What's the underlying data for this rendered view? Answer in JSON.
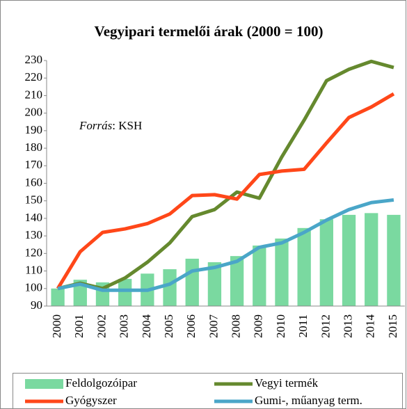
{
  "chart_data": {
    "type": "combo",
    "title": "Vegyipari termelői árak (2000 = 100)",
    "annotation": [
      "Forrás",
      ": KSH"
    ],
    "categories": [
      "2000",
      "2001",
      "2002",
      "2003",
      "2004",
      "2005",
      "2006",
      "2007",
      "2008",
      "2009",
      "2010",
      "2011",
      "2012",
      "2013",
      "2014",
      "2015"
    ],
    "series": [
      {
        "name": "Feldolgozóipar",
        "type": "bar",
        "color": "#7ad9a0",
        "values": [
          100,
          105,
          103.5,
          105.5,
          108.5,
          111,
          117,
          115,
          118.5,
          124.5,
          128.5,
          134.5,
          139.5,
          142,
          143,
          142
        ]
      },
      {
        "name": "Vegyi termék",
        "type": "line",
        "color": "#65892e",
        "values": [
          100,
          103,
          100,
          106,
          115,
          126,
          141,
          145,
          155,
          151.5,
          175,
          196,
          218.5,
          225,
          229.5,
          226
        ]
      },
      {
        "name": "Gyógyszer",
        "type": "line",
        "color": "#ff4719",
        "values": [
          100,
          121,
          132,
          134,
          137,
          142.5,
          153,
          153.5,
          151,
          165,
          167,
          168,
          183,
          197.5,
          203.5,
          211
        ]
      },
      {
        "name": "Gumi-, műanyag term.",
        "type": "line",
        "color": "#4aa6c8",
        "values": [
          100,
          102.5,
          99,
          99,
          99,
          102.5,
          110,
          112,
          115.5,
          123.5,
          126,
          132,
          139,
          145,
          149,
          150.5
        ]
      }
    ],
    "ylim": [
      90,
      230
    ],
    "yticks": [
      90,
      100,
      110,
      120,
      130,
      140,
      150,
      160,
      170,
      180,
      190,
      200,
      210,
      220,
      230
    ]
  }
}
